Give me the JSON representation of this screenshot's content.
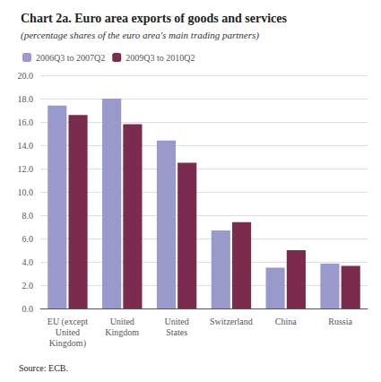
{
  "chart_data": {
    "type": "bar",
    "title": "Chart 2a. Euro area exports of goods and services",
    "subtitle": "(percentage shares of the euro area's main trading partners)",
    "annotations": [
      "Source: ECB."
    ],
    "categories": [
      "EU (except\nUnited\nKingdom)",
      "United\nKingdom",
      "United\nStates",
      "Switzerland",
      "China",
      "Russia"
    ],
    "series": [
      {
        "name": "2006Q3 to 2007Q2",
        "color": "#9999cc",
        "values": [
          17.4,
          18.0,
          14.4,
          6.7,
          3.5,
          3.85
        ]
      },
      {
        "name": "2009Q3 to 2010Q2",
        "color": "#7b2c4e",
        "values": [
          16.6,
          15.8,
          12.5,
          7.4,
          5.0,
          3.65
        ]
      }
    ],
    "ylim": [
      0,
      20.0
    ],
    "yticks": [
      {
        "value": 0.0,
        "label": "0.0"
      },
      {
        "value": 2.0,
        "label": "2.0"
      },
      {
        "value": 4.0,
        "label": "4.0"
      },
      {
        "value": 6.0,
        "label": "6.0"
      },
      {
        "value": 8.0,
        "label": "8.0"
      },
      {
        "value": 10.0,
        "label": "10.0"
      },
      {
        "value": 12.0,
        "label": "12.0"
      },
      {
        "value": 14.0,
        "label": "14.0"
      },
      {
        "value": 16.0,
        "label": "16.0"
      },
      {
        "value": 18.0,
        "label": "18.0"
      },
      {
        "value": 20.0,
        "label": "20.0"
      }
    ],
    "grid": true,
    "legend": "upper left"
  }
}
